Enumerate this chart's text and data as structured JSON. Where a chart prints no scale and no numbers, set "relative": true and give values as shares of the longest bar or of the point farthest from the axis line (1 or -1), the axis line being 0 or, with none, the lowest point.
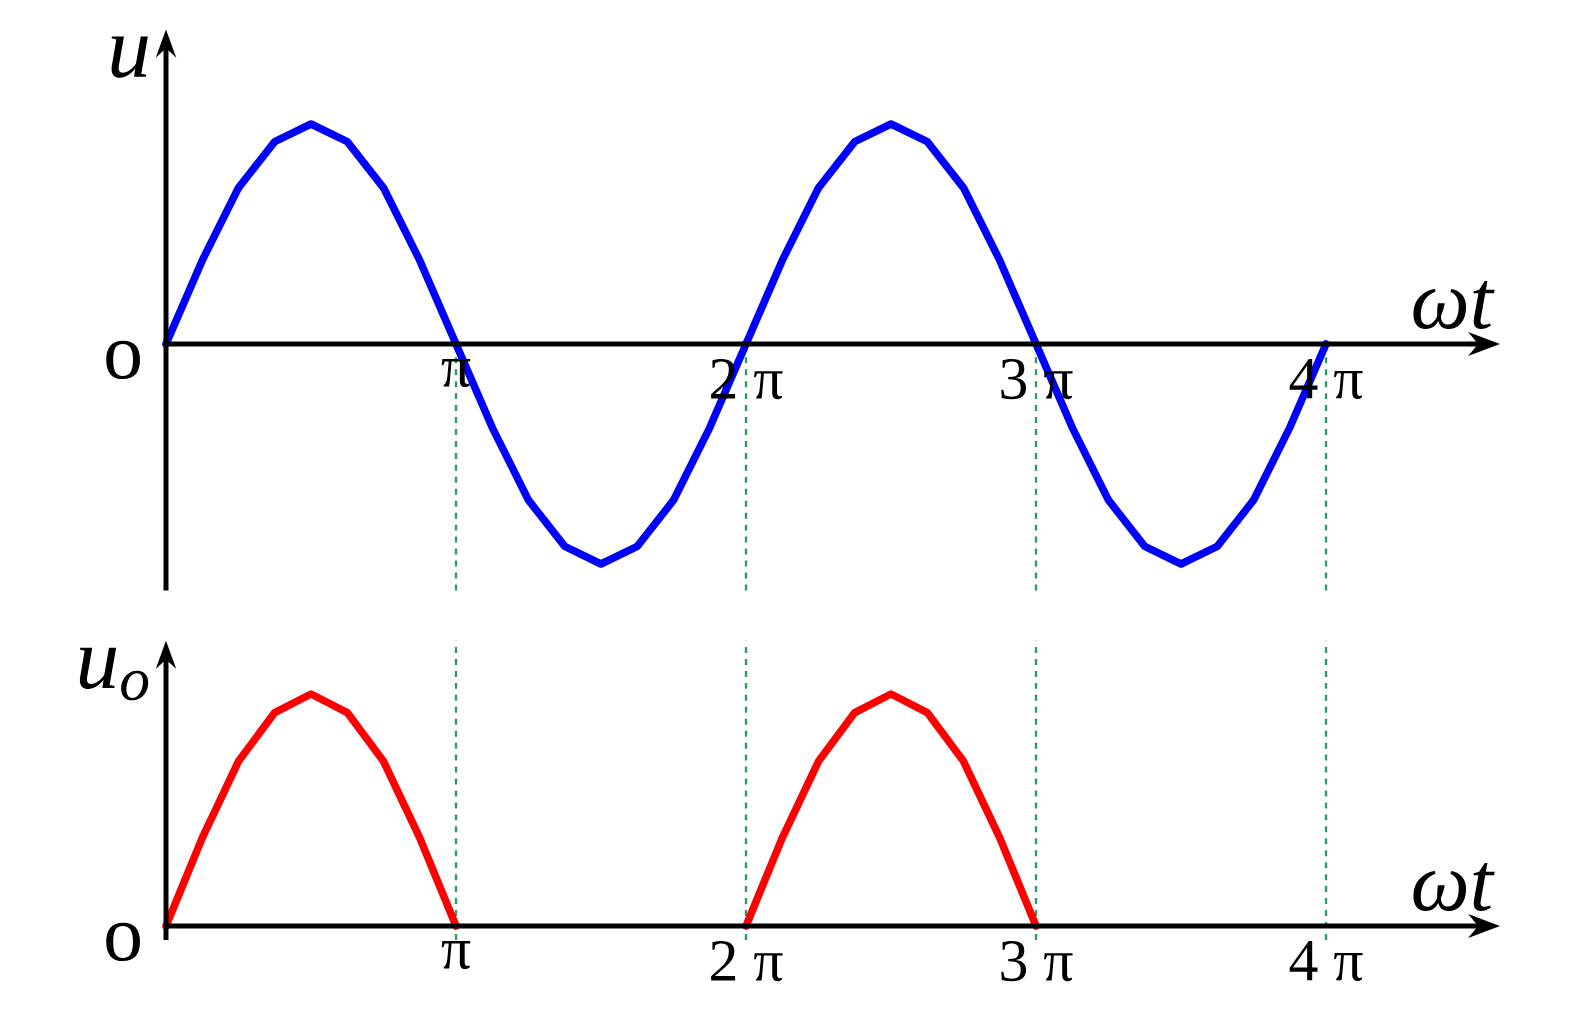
{
  "chart_data": [
    {
      "type": "line",
      "relative": true,
      "tick_labels": "x",
      "xlabel": "ωt",
      "ylabel": "u",
      "annotations": [
        "o"
      ],
      "categories": [
        null,
        null,
        null,
        null,
        null,
        null,
        null,
        null,
        "π",
        null,
        null,
        null,
        null,
        null,
        null,
        null,
        "2 π",
        null,
        null,
        null,
        null,
        null,
        null,
        null,
        "3 π",
        null,
        null,
        null,
        null,
        null,
        null,
        null,
        "4 π"
      ],
      "series": [
        {
          "color": "#0000ff",
          "values": [
            0,
            0.38,
            0.71,
            0.92,
            1,
            0.92,
            0.71,
            0.38,
            0,
            -0.38,
            -0.71,
            -0.92,
            -1,
            -0.92,
            -0.71,
            -0.38,
            0,
            0.38,
            0.71,
            0.92,
            1,
            0.92,
            0.71,
            0.38,
            0,
            -0.38,
            -0.71,
            -0.92,
            -1,
            -0.92,
            -0.71,
            -0.38,
            0
          ]
        }
      ],
      "ref_lines": [
        {
          "axis": "x",
          "value": "π",
          "color": "#2e9e5e",
          "line_style": "dashed"
        },
        {
          "axis": "x",
          "value": "2 π",
          "color": "#2e9e5e",
          "line_style": "dashed"
        },
        {
          "axis": "x",
          "value": "3 π",
          "color": "#2e9e5e",
          "line_style": "dashed"
        },
        {
          "axis": "x",
          "value": "4 π",
          "color": "#2e9e5e",
          "line_style": "dashed"
        }
      ]
    },
    {
      "type": "line",
      "relative": true,
      "tick_labels": "x",
      "xlabel": "ωt",
      "ylabel": "u$_{o}$",
      "annotations": [
        "o"
      ],
      "categories": [
        null,
        null,
        null,
        null,
        null,
        null,
        null,
        null,
        "π",
        null,
        null,
        null,
        null,
        null,
        null,
        null,
        "2 π",
        null,
        null,
        null,
        null,
        null,
        null,
        null,
        "3 π",
        null,
        null,
        null,
        null,
        null,
        null,
        null,
        "4 π"
      ],
      "series": [
        {
          "color": "#ff0000",
          "values": [
            0,
            0.38,
            0.71,
            0.92,
            1,
            0.92,
            0.71,
            0.38,
            0,
            null,
            null,
            null,
            null,
            null,
            null,
            null,
            0,
            0.38,
            0.71,
            0.92,
            1,
            0.92,
            0.71,
            0.38,
            0,
            null,
            null,
            null,
            null,
            null,
            null,
            null,
            null
          ]
        }
      ],
      "ref_lines": [
        {
          "axis": "x",
          "value": "π",
          "color": "#2e9e5e",
          "line_style": "dashed"
        },
        {
          "axis": "x",
          "value": "2 π",
          "color": "#2e9e5e",
          "line_style": "dashed"
        },
        {
          "axis": "x",
          "value": "3 π",
          "color": "#2e9e5e",
          "line_style": "dashed"
        },
        {
          "axis": "x",
          "value": "4 π",
          "color": "#2e9e5e",
          "line_style": "dashed"
        }
      ]
    }
  ]
}
